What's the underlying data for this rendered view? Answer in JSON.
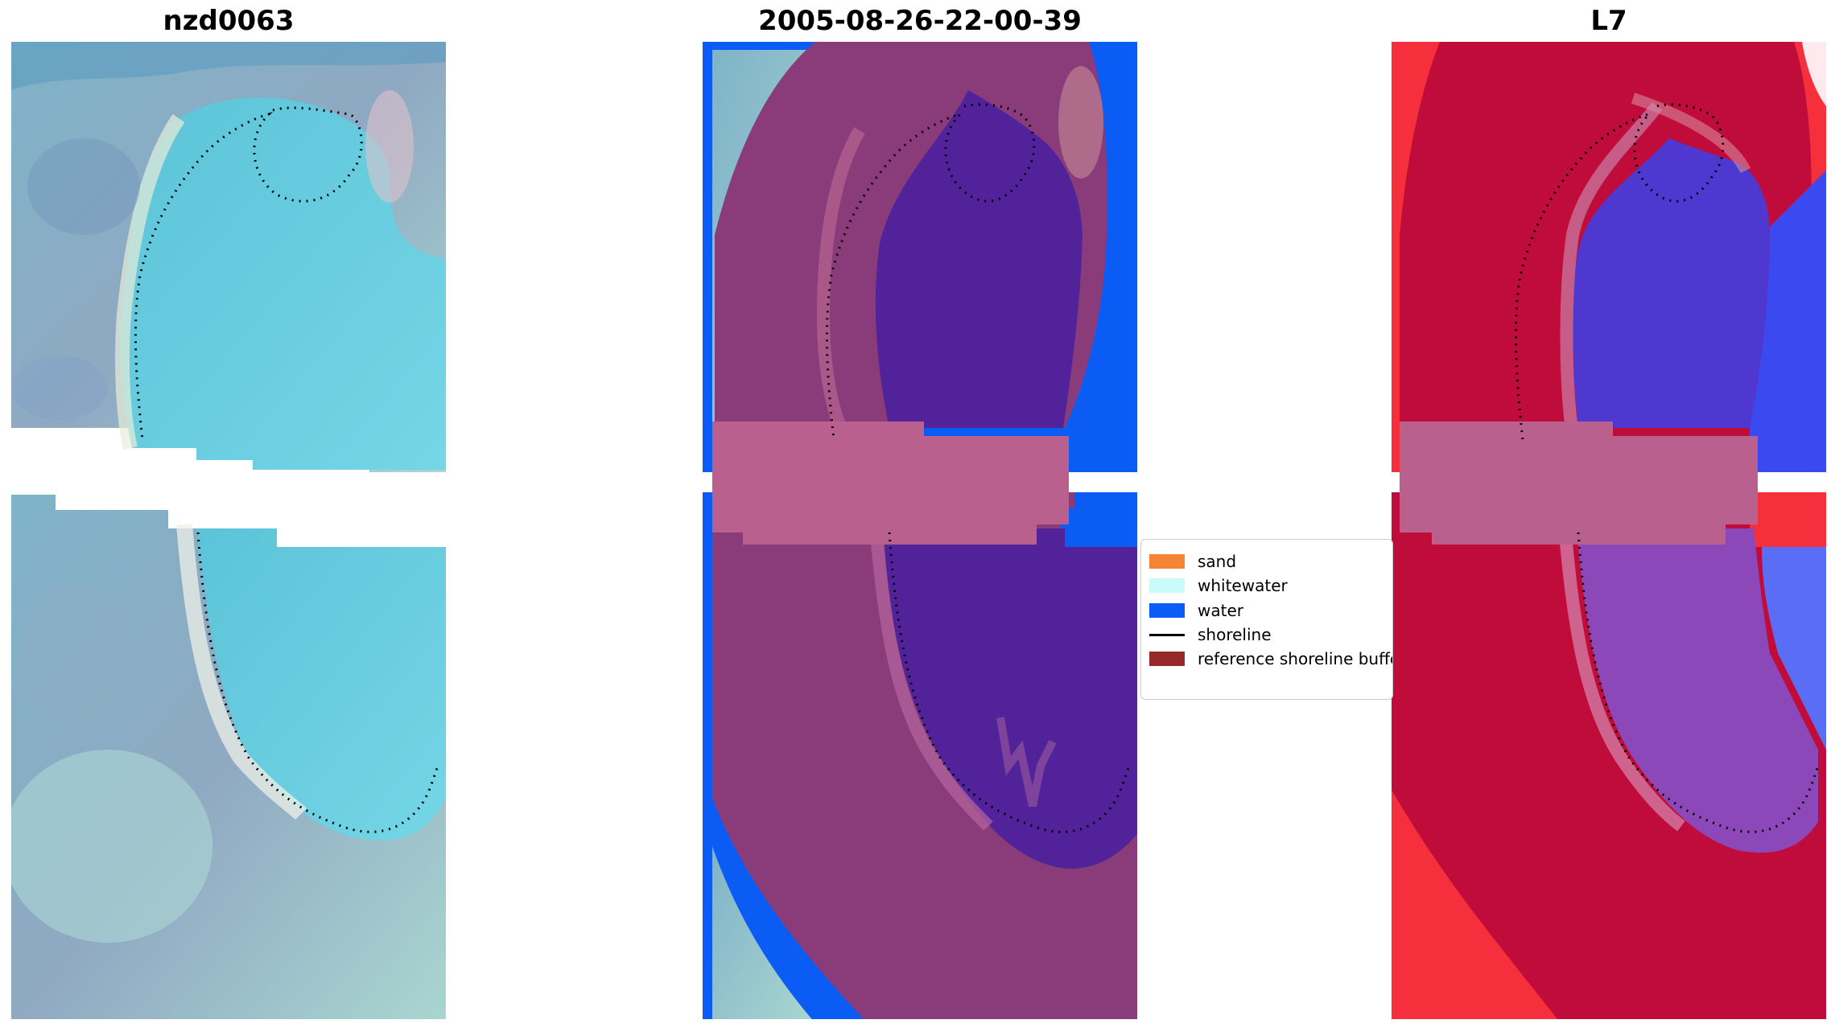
{
  "panels": [
    {
      "title": "nzd0063"
    },
    {
      "title": "2005-08-26-22-00-39"
    },
    {
      "title": "L7"
    }
  ],
  "legend": {
    "items": [
      {
        "label": "sand",
        "color": "#f58535",
        "kind": "swatch"
      },
      {
        "label": "whitewater",
        "color": "#c9fbfb",
        "kind": "swatch"
      },
      {
        "label": "water",
        "color": "#0a5cf5",
        "kind": "swatch"
      },
      {
        "label": "shoreline",
        "color": "#000000",
        "kind": "line"
      },
      {
        "label": "reference shoreline buffer",
        "color": "#962a2a",
        "kind": "swatch"
      }
    ]
  },
  "colors": {
    "rgb_water": "#66c9dd",
    "rgb_land": "#8fb2c4",
    "class_water": "#0a5cf5",
    "class_buffer_overlay": "#8a3c7a",
    "class_water_in_buffer": "#52229a",
    "class_gap_band": "#b9608f",
    "index_land": "#c00c3a",
    "index_water": "#4e38d0",
    "index_outer_red": "#f5303c"
  }
}
